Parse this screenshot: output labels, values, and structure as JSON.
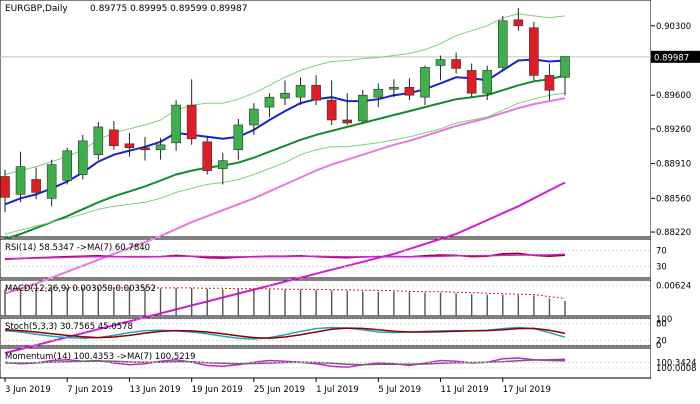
{
  "header": {
    "symbol": "EURGBP,Daily",
    "ohlc": "0.89775 0.89995 0.89599 0.89987"
  },
  "colors": {
    "bull": "#3cb04a",
    "bear": "#e01d25",
    "wick": "#222222",
    "ma_blue": "#1624c8",
    "ma_green": "#168a2e",
    "ma_pink": "#e878dc",
    "ma_magenta": "#d21ed2",
    "env": "#7ccf7e",
    "price_tag": "#000000"
  },
  "chart_data": [
    {
      "type": "candlestick",
      "title": "EURGBP,Daily",
      "ylim": [
        0.8817,
        0.9056
      ],
      "y_ticks": [
        "0.90300",
        "0.89600",
        "0.89260",
        "0.88910",
        "0.88560",
        "0.88220"
      ],
      "current_price": "0.89987",
      "x_labels": [
        "3 Jun 2019",
        "7 Jun 2019",
        "13 Jun 2019",
        "19 Jun 2019",
        "25 Jun 2019",
        "1 Jul 2019",
        "5 Jul 2019",
        "11 Jul 2019",
        "17 Jul 2019"
      ],
      "candles": [
        {
          "o": 0.8878,
          "h": 0.8885,
          "l": 0.8842,
          "c": 0.8857
        },
        {
          "o": 0.886,
          "h": 0.8903,
          "l": 0.8852,
          "c": 0.8888
        },
        {
          "o": 0.8875,
          "h": 0.8887,
          "l": 0.8855,
          "c": 0.8862
        },
        {
          "o": 0.8856,
          "h": 0.8895,
          "l": 0.8848,
          "c": 0.889
        },
        {
          "o": 0.8874,
          "h": 0.8907,
          "l": 0.887,
          "c": 0.8904
        },
        {
          "o": 0.888,
          "h": 0.892,
          "l": 0.8875,
          "c": 0.8914
        },
        {
          "o": 0.89,
          "h": 0.8933,
          "l": 0.8895,
          "c": 0.8928
        },
        {
          "o": 0.8925,
          "h": 0.8934,
          "l": 0.8905,
          "c": 0.8909
        },
        {
          "o": 0.8911,
          "h": 0.8922,
          "l": 0.8898,
          "c": 0.8907
        },
        {
          "o": 0.8907,
          "h": 0.8918,
          "l": 0.8894,
          "c": 0.8905
        },
        {
          "o": 0.8905,
          "h": 0.8917,
          "l": 0.8895,
          "c": 0.891
        },
        {
          "o": 0.8912,
          "h": 0.8955,
          "l": 0.8904,
          "c": 0.895
        },
        {
          "o": 0.895,
          "h": 0.8976,
          "l": 0.891,
          "c": 0.8916
        },
        {
          "o": 0.8913,
          "h": 0.8918,
          "l": 0.888,
          "c": 0.8884
        },
        {
          "o": 0.8886,
          "h": 0.8902,
          "l": 0.887,
          "c": 0.8894
        },
        {
          "o": 0.8905,
          "h": 0.8936,
          "l": 0.8895,
          "c": 0.893
        },
        {
          "o": 0.893,
          "h": 0.8952,
          "l": 0.892,
          "c": 0.8946
        },
        {
          "o": 0.8948,
          "h": 0.8962,
          "l": 0.8938,
          "c": 0.8958
        },
        {
          "o": 0.8957,
          "h": 0.8975,
          "l": 0.895,
          "c": 0.8962
        },
        {
          "o": 0.8958,
          "h": 0.8978,
          "l": 0.895,
          "c": 0.897
        },
        {
          "o": 0.897,
          "h": 0.898,
          "l": 0.895,
          "c": 0.8955
        },
        {
          "o": 0.8955,
          "h": 0.8975,
          "l": 0.893,
          "c": 0.8935
        },
        {
          "o": 0.8935,
          "h": 0.8962,
          "l": 0.893,
          "c": 0.8932
        },
        {
          "o": 0.8934,
          "h": 0.8965,
          "l": 0.8932,
          "c": 0.896
        },
        {
          "o": 0.8958,
          "h": 0.8972,
          "l": 0.8948,
          "c": 0.8966
        },
        {
          "o": 0.8966,
          "h": 0.8976,
          "l": 0.8958,
          "c": 0.8968
        },
        {
          "o": 0.8968,
          "h": 0.8977,
          "l": 0.8955,
          "c": 0.896
        },
        {
          "o": 0.8958,
          "h": 0.899,
          "l": 0.895,
          "c": 0.8988
        },
        {
          "o": 0.899,
          "h": 0.9,
          "l": 0.8975,
          "c": 0.8996
        },
        {
          "o": 0.8996,
          "h": 0.9003,
          "l": 0.8982,
          "c": 0.8987
        },
        {
          "o": 0.8985,
          "h": 0.8992,
          "l": 0.8958,
          "c": 0.8962
        },
        {
          "o": 0.8962,
          "h": 0.899,
          "l": 0.8955,
          "c": 0.8985
        },
        {
          "o": 0.8988,
          "h": 0.904,
          "l": 0.8985,
          "c": 0.9035
        },
        {
          "o": 0.9036,
          "h": 0.9048,
          "l": 0.9025,
          "c": 0.903
        },
        {
          "o": 0.9028,
          "h": 0.9034,
          "l": 0.8975,
          "c": 0.898
        },
        {
          "o": 0.898,
          "h": 0.8992,
          "l": 0.8955,
          "c": 0.8965
        },
        {
          "o": 0.8978,
          "h": 0.8999,
          "l": 0.896,
          "c": 0.8999
        }
      ],
      "overlays": [
        {
          "color_key": "ma_blue",
          "width": 2,
          "values": [
            0.885,
            0.8856,
            0.886,
            0.8866,
            0.8873,
            0.8882,
            0.8893,
            0.89,
            0.8904,
            0.8908,
            0.8913,
            0.8922,
            0.892,
            0.8918,
            0.8916,
            0.8918,
            0.8925,
            0.8935,
            0.8944,
            0.8952,
            0.8956,
            0.8958,
            0.8954,
            0.8954,
            0.8956,
            0.896,
            0.8962,
            0.8966,
            0.8972,
            0.8978,
            0.8977,
            0.8975,
            0.8985,
            0.8995,
            0.8996,
            0.8994,
            0.8995
          ]
        },
        {
          "color_key": "ma_green",
          "width": 2,
          "values": [
            0.8815,
            0.882,
            0.8826,
            0.8832,
            0.8838,
            0.8845,
            0.8852,
            0.8858,
            0.8863,
            0.8868,
            0.8874,
            0.888,
            0.8884,
            0.8887,
            0.8889,
            0.8892,
            0.8897,
            0.8903,
            0.8909,
            0.8915,
            0.892,
            0.8924,
            0.8928,
            0.8932,
            0.8936,
            0.894,
            0.8944,
            0.8948,
            0.8952,
            0.8956,
            0.8958,
            0.896,
            0.8965,
            0.897,
            0.8974,
            0.8976,
            0.898
          ]
        },
        {
          "color_key": "ma_pink",
          "width": 2,
          "values": [
            0.876,
            0.8765,
            0.877,
            0.8776,
            0.8782,
            0.8788,
            0.8794,
            0.88,
            0.8806,
            0.8812,
            0.8818,
            0.8825,
            0.8832,
            0.8838,
            0.8844,
            0.885,
            0.8856,
            0.8863,
            0.887,
            0.8877,
            0.8884,
            0.889,
            0.8895,
            0.89,
            0.8905,
            0.891,
            0.8914,
            0.8919,
            0.8924,
            0.8929,
            0.8933,
            0.8937,
            0.8942,
            0.8947,
            0.8951,
            0.8954,
            0.8957
          ]
        },
        {
          "color_key": "ma_magenta",
          "width": 2,
          "values": [
            0.87,
            0.8704,
            0.8708,
            0.8712,
            0.8716,
            0.872,
            0.8724,
            0.8728,
            0.8732,
            0.8736,
            0.874,
            0.8744,
            0.8748,
            0.8752,
            0.8756,
            0.876,
            0.8764,
            0.8768,
            0.8772,
            0.8776,
            0.878,
            0.8784,
            0.8788,
            0.8792,
            0.8796,
            0.88,
            0.8805,
            0.881,
            0.8815,
            0.882,
            0.8827,
            0.8834,
            0.8841,
            0.8848,
            0.8856,
            0.8864,
            0.8872
          ]
        },
        {
          "color_key": "env",
          "width": 1,
          "values": [
            0.888,
            0.8884,
            0.8888,
            0.8893,
            0.8898,
            0.8905,
            0.8915,
            0.8922,
            0.8926,
            0.893,
            0.8935,
            0.8945,
            0.895,
            0.8952,
            0.8952,
            0.8956,
            0.8962,
            0.897,
            0.8978,
            0.8985,
            0.899,
            0.8994,
            0.8995,
            0.8997,
            0.8998,
            0.9,
            0.9002,
            0.9006,
            0.9012,
            0.902,
            0.9025,
            0.903,
            0.9038,
            0.9042,
            0.904,
            0.9038,
            0.904
          ]
        },
        {
          "color_key": "env",
          "width": 1,
          "values": [
            0.882,
            0.8824,
            0.8828,
            0.8832,
            0.8836,
            0.884,
            0.8845,
            0.8848,
            0.885,
            0.8852,
            0.8856,
            0.8862,
            0.8866,
            0.887,
            0.8872,
            0.8875,
            0.888,
            0.8886,
            0.8892,
            0.89,
            0.8905,
            0.8908,
            0.8908,
            0.891,
            0.8912,
            0.8915,
            0.8918,
            0.8922,
            0.8926,
            0.8932,
            0.8935,
            0.8938,
            0.8945,
            0.8952,
            0.8956,
            0.896,
            0.8962
          ]
        }
      ]
    },
    {
      "type": "line",
      "title": "RSI(14) 58.5347 ->MA(7) 60.7840",
      "y_ticks": [
        "70",
        "30"
      ],
      "ylim": [
        0,
        100
      ],
      "series": [
        {
          "color": "#8b0000",
          "values": [
            48,
            50,
            52,
            53,
            55,
            56,
            57,
            55,
            54,
            54,
            55,
            58,
            56,
            52,
            51,
            53,
            55,
            56,
            56,
            57,
            55,
            53,
            52,
            54,
            55,
            55,
            54,
            57,
            59,
            58,
            55,
            56,
            62,
            63,
            58,
            56,
            58.5
          ]
        },
        {
          "color": "#d21ed2",
          "values": [
            50,
            50,
            51,
            52,
            53,
            54,
            55,
            55,
            55,
            55,
            55,
            56,
            56,
            55,
            54,
            54,
            54,
            55,
            55,
            56,
            56,
            55,
            54,
            54,
            55,
            55,
            55,
            55,
            56,
            57,
            57,
            57,
            58,
            59,
            59,
            59,
            60.8
          ]
        }
      ]
    },
    {
      "type": "bar",
      "title": "MACD(12,26,9) 0.003050 0.003552",
      "y_ticks": [
        "0.00624"
      ],
      "ylim": [
        0,
        0.0068
      ],
      "values": [
        0.0055,
        0.0056,
        0.0057,
        0.0058,
        0.0058,
        0.0058,
        0.0059,
        0.0058,
        0.0057,
        0.0057,
        0.0057,
        0.0058,
        0.0058,
        0.0056,
        0.0055,
        0.0055,
        0.0055,
        0.0055,
        0.0055,
        0.0055,
        0.0054,
        0.0053,
        0.0052,
        0.0051,
        0.005,
        0.005,
        0.0049,
        0.0048,
        0.0048,
        0.0047,
        0.0045,
        0.0044,
        0.0044,
        0.0043,
        0.0042,
        0.0036,
        0.0031
      ],
      "signal": [
        0.0057,
        0.0057,
        0.0057,
        0.0058,
        0.0058,
        0.0058,
        0.0058,
        0.0058,
        0.0058,
        0.0058,
        0.0058,
        0.0058,
        0.0058,
        0.0057,
        0.0057,
        0.0056,
        0.0056,
        0.0056,
        0.0055,
        0.0055,
        0.0055,
        0.0054,
        0.0054,
        0.0053,
        0.0053,
        0.0052,
        0.0051,
        0.005,
        0.005,
        0.0049,
        0.0048,
        0.0047,
        0.0046,
        0.0045,
        0.0044,
        0.004,
        0.0036
      ]
    },
    {
      "type": "line",
      "title": "Stoch(5,3,3) 30.7565 45.0578",
      "y_ticks": [
        "100",
        "80",
        "20",
        "0"
      ],
      "ylim": [
        0,
        100
      ],
      "series": [
        {
          "color": "#2aa0b8",
          "values": [
            55,
            50,
            42,
            35,
            30,
            28,
            30,
            38,
            48,
            55,
            56,
            54,
            50,
            44,
            35,
            28,
            25,
            30,
            40,
            52,
            62,
            66,
            64,
            58,
            50,
            48,
            50,
            52,
            54,
            55,
            55,
            56,
            62,
            66,
            62,
            48,
            31
          ]
        },
        {
          "color": "#8b0000",
          "values": [
            58,
            55,
            50,
            44,
            38,
            33,
            30,
            32,
            38,
            46,
            52,
            55,
            54,
            50,
            44,
            36,
            30,
            28,
            32,
            40,
            50,
            60,
            64,
            63,
            58,
            53,
            50,
            50,
            51,
            53,
            54,
            55,
            58,
            62,
            63,
            56,
            45
          ]
        }
      ]
    },
    {
      "type": "line",
      "title": "Momentum(14) 100.4353 ->MA(7) 100.5219",
      "y_ticks": [
        "100.3424",
        "100.0008"
      ],
      "ylim": [
        99.4,
        101.2
      ],
      "series": [
        {
          "color": "#d21ed2",
          "values": [
            100.35,
            100.25,
            100.3,
            100.45,
            100.5,
            100.4,
            100.45,
            100.3,
            100.2,
            100.25,
            100.4,
            100.5,
            100.35,
            100.15,
            100.1,
            100.2,
            100.35,
            100.45,
            100.4,
            100.35,
            100.25,
            100.1,
            100.05,
            100.2,
            100.3,
            100.25,
            100.15,
            100.3,
            100.45,
            100.4,
            100.3,
            100.35,
            100.55,
            100.6,
            100.5,
            100.45,
            100.44
          ]
        },
        {
          "color": "#666666",
          "values": [
            100.3,
            100.3,
            100.32,
            100.35,
            100.38,
            100.4,
            100.42,
            100.4,
            100.36,
            100.34,
            100.35,
            100.38,
            100.37,
            100.32,
            100.28,
            100.25,
            100.27,
            100.3,
            100.33,
            100.35,
            100.33,
            100.28,
            100.22,
            100.2,
            100.22,
            100.23,
            100.22,
            100.24,
            100.28,
            100.32,
            100.33,
            100.34,
            100.38,
            100.44,
            100.48,
            100.5,
            100.52
          ]
        }
      ]
    }
  ]
}
